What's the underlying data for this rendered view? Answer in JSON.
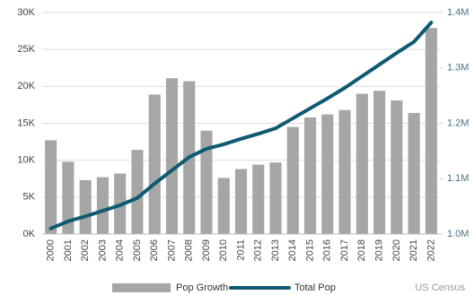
{
  "chart_data": {
    "type": "bar_line",
    "categories": [
      "2000",
      "2001",
      "2002",
      "2003",
      "2004",
      "2005",
      "2006",
      "2007",
      "2008",
      "2009",
      "2010",
      "2011",
      "2012",
      "2013",
      "2014",
      "2015",
      "2016",
      "2017",
      "2018",
      "2019",
      "2020",
      "2021",
      "2022"
    ],
    "series": [
      {
        "name": "Pop Growth",
        "type": "bar",
        "color": "#a6a6a6",
        "axis": "y",
        "values": [
          12700,
          9800,
          7300,
          7700,
          8200,
          11400,
          18900,
          21100,
          20700,
          14000,
          7600,
          8800,
          9400,
          9700,
          14500,
          15800,
          16200,
          16800,
          19000,
          19400,
          18100,
          16400,
          27900
        ]
      },
      {
        "name": "Total Pop",
        "type": "line",
        "color": "#0e5a72",
        "axis": "y2",
        "values": [
          1010000,
          1023000,
          1032000,
          1042000,
          1052000,
          1065000,
          1091000,
          1115000,
          1139000,
          1154000,
          1162000,
          1172000,
          1181000,
          1191000,
          1209000,
          1227000,
          1245000,
          1264000,
          1285000,
          1306000,
          1327000,
          1347000,
          1382000
        ]
      }
    ],
    "ylim": [
      0,
      30000
    ],
    "yticks": [
      {
        "value": 0,
        "label": "0K"
      },
      {
        "value": 5000,
        "label": "5K"
      },
      {
        "value": 10000,
        "label": "10K"
      },
      {
        "value": 15000,
        "label": "15K"
      },
      {
        "value": 20000,
        "label": "20K"
      },
      {
        "value": 25000,
        "label": "25K"
      },
      {
        "value": 30000,
        "label": "30K"
      }
    ],
    "y2lim": [
      1000000,
      1400000
    ],
    "y2ticks": [
      {
        "value": 1000000,
        "label": "1.0M"
      },
      {
        "value": 1100000,
        "label": "1.1M"
      },
      {
        "value": 1200000,
        "label": "1.2M"
      },
      {
        "value": 1300000,
        "label": "1.3M"
      },
      {
        "value": 1400000,
        "label": "1.4M"
      }
    ],
    "grid": true,
    "source": "US Census"
  }
}
